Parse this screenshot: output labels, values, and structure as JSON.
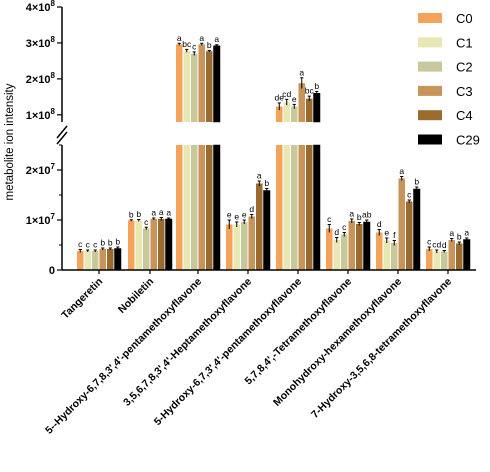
{
  "chart_data": {
    "type": "bar",
    "ylabel": "metabolite ion intensity",
    "y_axis_broken": true,
    "segments": [
      {
        "ylim": [
          0,
          25000000
        ],
        "ticks": [
          {
            "value": 0,
            "label": "0"
          },
          {
            "value": 10000000,
            "label": "1×10",
            "exp": "7"
          },
          {
            "value": 20000000,
            "label": "2×10",
            "exp": "7"
          }
        ]
      },
      {
        "ylim": [
          80000000,
          400000000
        ],
        "ticks": [
          {
            "value": 100000000,
            "label": "1×10",
            "exp": "8"
          },
          {
            "value": 200000000,
            "label": "2×10",
            "exp": "8"
          },
          {
            "value": 300000000,
            "label": "3×10",
            "exp": "8"
          },
          {
            "value": 400000000,
            "label": "4×10",
            "exp": "8"
          }
        ]
      }
    ],
    "categories": [
      "Tangeretin",
      "Nobiletin",
      "5--Hydroxy-6,7,8,3',4'-pentamethoxyflavone",
      "3,5,6,7,8,3',4'-Heptamethoxyflavone",
      "5-Hydroxy-6,7,3',4'-pentamethoxyflavone",
      "5,7,8,4',-Tetramethoxyflavone",
      "Monohydroxy-hexamethoxyflavone",
      "7-Hydroxy-3,5,6,8-tetramethoxyflavone"
    ],
    "series": [
      {
        "name": "C0",
        "color": "#f4a35a",
        "values": [
          3800000,
          9900000,
          296000000,
          9100000,
          123000000,
          8300000,
          7500000,
          4200000
        ],
        "errors": [
          300000,
          150000,
          3000000,
          900000,
          10000000,
          800000,
          600000,
          400000
        ],
        "letters": [
          "c",
          "b",
          "a",
          "e",
          "de",
          "c",
          "d",
          "c"
        ]
      },
      {
        "name": "C1",
        "color": "#e8e8b4",
        "values": [
          3800000,
          9900000,
          278000000,
          9100000,
          135000000,
          6000000,
          5900000,
          3700000
        ],
        "errors": [
          200000,
          200000,
          4000000,
          500000,
          8000000,
          500000,
          500000,
          300000
        ],
        "letters": [
          "c",
          "b",
          "bc",
          "e",
          "cd",
          "d",
          "e",
          "cd"
        ]
      },
      {
        "name": "C2",
        "color": "#c8c89a",
        "values": [
          3800000,
          8300000,
          270000000,
          9600000,
          123000000,
          7100000,
          5400000,
          3700000
        ],
        "errors": [
          200000,
          250000,
          5000000,
          400000,
          6000000,
          400000,
          500000,
          200000
        ],
        "letters": [
          "c",
          "c",
          "c",
          "e",
          "e",
          "c",
          "f",
          "d"
        ]
      },
      {
        "name": "C3",
        "color": "#c9945a",
        "values": [
          4200000,
          10200000,
          296000000,
          10700000,
          188000000,
          9800000,
          18300000,
          6000000
        ],
        "errors": [
          200000,
          200000,
          3000000,
          400000,
          15000000,
          400000,
          400000,
          300000
        ],
        "letters": [
          "b",
          "a",
          "a",
          "d",
          "a",
          "a",
          "a",
          "a"
        ]
      },
      {
        "name": "C4",
        "color": "#9a6a2e",
        "values": [
          4200000,
          10200000,
          277000000,
          17300000,
          145000000,
          9200000,
          13700000,
          5300000
        ],
        "errors": [
          200000,
          300000,
          2000000,
          500000,
          7000000,
          300000,
          300000,
          300000
        ],
        "letters": [
          "b",
          "a",
          "b",
          "a",
          "bc",
          "b",
          "c",
          "b"
        ]
      },
      {
        "name": "C29",
        "color": "#000000",
        "values": [
          4300000,
          10200000,
          292000000,
          15900000,
          160000000,
          9600000,
          16200000,
          6100000
        ],
        "errors": [
          300000,
          200000,
          3000000,
          400000,
          5000000,
          400000,
          400000,
          300000
        ],
        "letters": [
          "b",
          "a",
          "a",
          "b",
          "b",
          "ab",
          "b",
          "a"
        ]
      }
    ]
  }
}
